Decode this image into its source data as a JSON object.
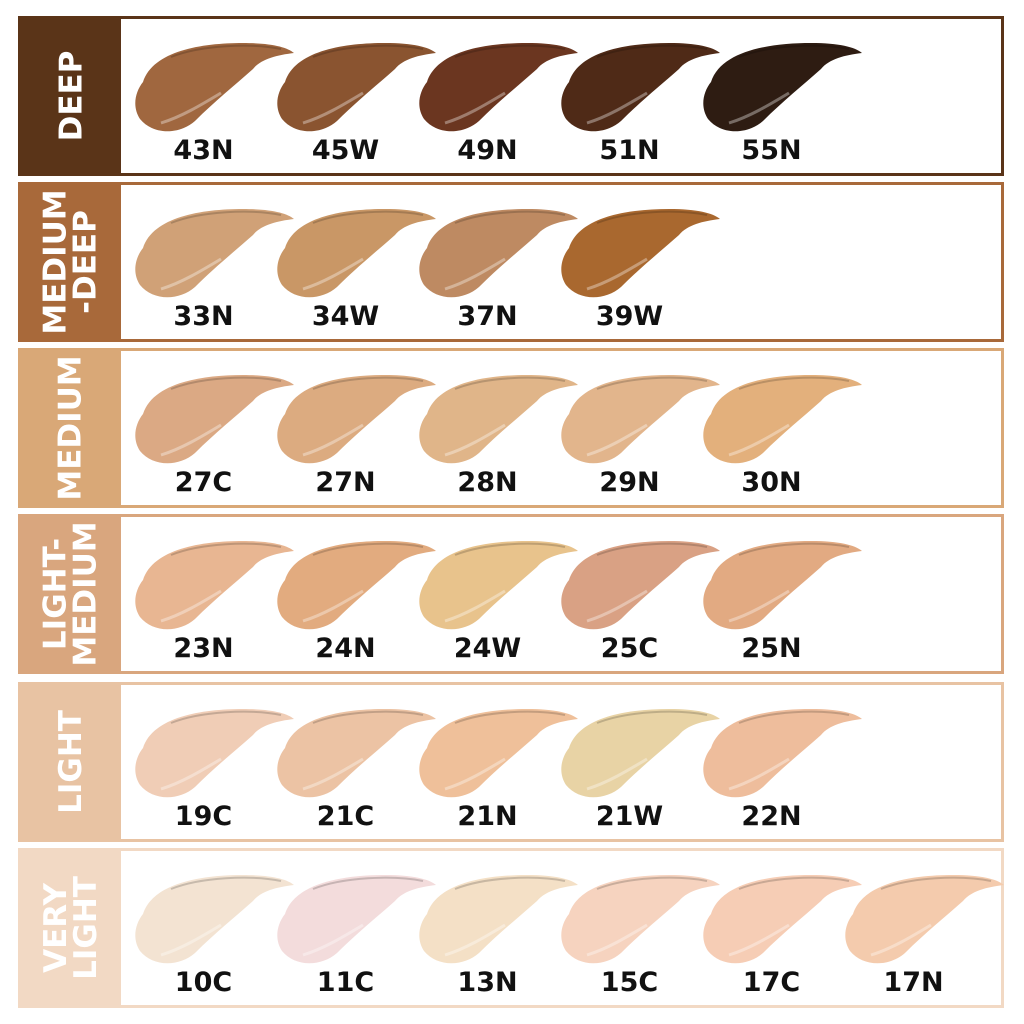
{
  "categories": [
    {
      "label": "DEEP",
      "color": "#5a3418",
      "shades": [
        {
          "name": "43N",
          "color": "#a0673f"
        },
        {
          "name": "45W",
          "color": "#8a5430"
        },
        {
          "name": "49N",
          "color": "#6b3620"
        },
        {
          "name": "51N",
          "color": "#4f2a17"
        },
        {
          "name": "55N",
          "color": "#2e1c12"
        }
      ]
    },
    {
      "label": "MEDIUM\n-DEEP",
      "color": "#a8693a",
      "shades": [
        {
          "name": "33N",
          "color": "#d0a177"
        },
        {
          "name": "34W",
          "color": "#c99766"
        },
        {
          "name": "37N",
          "color": "#be8a62"
        },
        {
          "name": "39W",
          "color": "#a9682f"
        }
      ]
    },
    {
      "label": "MEDIUM",
      "color": "#d9a877",
      "shades": [
        {
          "name": "27C",
          "color": "#dba984"
        },
        {
          "name": "27N",
          "color": "#dcab80"
        },
        {
          "name": "28N",
          "color": "#e0b589"
        },
        {
          "name": "29N",
          "color": "#e2b58c"
        },
        {
          "name": "30N",
          "color": "#e3b07c"
        }
      ]
    },
    {
      "label": "LIGHT-\nMEDIUM",
      "color": "#d9a67e",
      "shades": [
        {
          "name": "23N",
          "color": "#e8b692"
        },
        {
          "name": "24N",
          "color": "#e2ab7f"
        },
        {
          "name": "24W",
          "color": "#e8c38c"
        },
        {
          "name": "25C",
          "color": "#d9a184"
        },
        {
          "name": "25N",
          "color": "#e2aa82"
        }
      ]
    },
    {
      "label": "LIGHT",
      "color": "#e8c3a3",
      "shades": [
        {
          "name": "19C",
          "color": "#f0cdb6"
        },
        {
          "name": "21C",
          "color": "#ecc3a4"
        },
        {
          "name": "21N",
          "color": "#efc09a"
        },
        {
          "name": "21W",
          "color": "#e8d3a5"
        },
        {
          "name": "22N",
          "color": "#eebd9c"
        }
      ]
    },
    {
      "label": "VERY\nLIGHT",
      "color": "#f2d9c4",
      "shades": [
        {
          "name": "10C",
          "color": "#f3e3d2"
        },
        {
          "name": "11C",
          "color": "#f3dcdc"
        },
        {
          "name": "13N",
          "color": "#f4e0c6"
        },
        {
          "name": "15C",
          "color": "#f6d3bf"
        },
        {
          "name": "17C",
          "color": "#f6cdb5"
        },
        {
          "name": "17N",
          "color": "#f4cbad"
        }
      ]
    }
  ]
}
